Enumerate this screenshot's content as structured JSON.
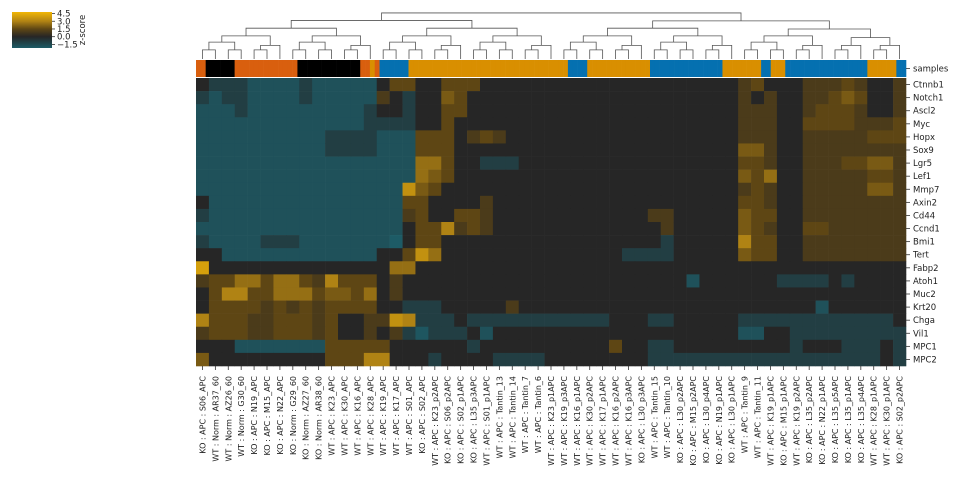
{
  "chart_data": {
    "type": "heatmap",
    "colorbar": {
      "label": "z-score",
      "ticks": [
        4.5,
        3.0,
        1.5,
        0.0,
        -1.5
      ],
      "tick_labels": [
        "4.5",
        "3.0",
        "1.5",
        "0.0",
        "−1.5"
      ],
      "range": [
        -2.2,
        4.8
      ],
      "stops": [
        {
          "v": -2.2,
          "color": "#1d5b66"
        },
        {
          "v": 0.0,
          "color": "#262626"
        },
        {
          "v": 1.5,
          "color": "#5e4614"
        },
        {
          "v": 3.0,
          "color": "#b08314"
        },
        {
          "v": 4.8,
          "color": "#f2b705"
        }
      ]
    },
    "annotation_label": "samples",
    "sample_group_colors": {
      "A": "#d95f0e",
      "B": "#1b9e77",
      "C": "#d98f00",
      "D": "#0570b0"
    },
    "groups_sequence": "AAGGGGGGAAAAAAAAAAAAAGGGGGGGGGGGGGAACADDDDDDCCCCCCCCCCCCCCCCCCCCCCCCCCCCCCCCCDDDDCCCCCCCCCCCCCDDDDDDDDDDDDDDDCCCCCCCCDDCCCDDDDDDDDDDDDDDDDDCCCCCCDD",
    "columns": [
      "KO : APC : S06_APC",
      "WT : Norm : AR37_60",
      "WT : Norm : AZ26_60",
      "WT : Norm : G30_60",
      "KO : APC : N19_APC",
      "KO : APC : M15_APC",
      "KO : APC : N22_APC",
      "KO : Norm : G29_60",
      "KO : Norm : AZ27_60",
      "KO : Norm : AR38_60",
      "WT : APC : K23_APC",
      "WT : APC : K30_APC",
      "WT : APC : K16_APC",
      "WT : APC : K28_APC",
      "WT : APC : K19_APC",
      "WT : APC : K17_APC",
      "WT : APC : S01_APC",
      "KO : APC : S02_APC",
      "WT : APC : K23_p2APC",
      "KO : APC : S06_p2APC",
      "KO : APC : S02_p1APC",
      "KO : APC : L35_p3APC",
      "WT : APC : S01_p1APC",
      "WT : APC : Tantin_13",
      "WT : APC : Tantin_14",
      "WT : APC : Tantin_7",
      "WT : APC : Tantin_6",
      "WT : APC : K23_p1APC",
      "WT : APC : K19_p3APC",
      "WT : APC : K16_p1APC",
      "WT : APC : K30_p2APC",
      "WT : APC : K17_p1APC",
      "WT : APC : K16_p2APC",
      "WT : APC : K16_p3APC",
      "KO : APC : L30_p3APC",
      "WT : APC : Tantin_15",
      "WT : APC : Tantin_10",
      "KO : APC : L30_p2APC",
      "KO : APC : M15_p2APC",
      "KO : APC : L30_p4APC",
      "KO : APC : N19_p1APC",
      "KO : APC : L30_p1APC",
      "WT : APC : Tantin_9",
      "WT : APC : Tantin_11",
      "WT : APC : K19_p1APC",
      "KO : APC : M15_p1APC",
      "WT : APC : K19_p2APC",
      "KO : APC : L35_p2APC",
      "KO : APC : N22_p1APC",
      "KO : APC : L35_p5APC",
      "KO : APC : L35_p1APC",
      "KO : APC : L35_p4APC",
      "WT : APC : K28_p1APC",
      "WT : APC : K30_p1APC",
      "KO : APC : S02_p2APC"
    ],
    "rows": [
      "Ctnnb1",
      "Notch1",
      "Ascl2",
      "Myc",
      "Hopx",
      "Sox9",
      "Lgr5",
      "Lef1",
      "Mmp7",
      "Axin2",
      "Cd44",
      "Ccnd1",
      "Bmi1",
      "Tert",
      "Fabp2",
      "Atoh1",
      "Muc2",
      "Krt20",
      "Chga",
      "Vil1",
      "MPC1",
      "MPC2"
    ],
    "values": [
      [
        0.0,
        -1.0,
        -1.0,
        -1.0,
        -1.8,
        -1.8,
        -1.8,
        -1.8,
        -1.0,
        -1.8,
        -1.8,
        -1.8,
        -1.8,
        -1.8,
        0.0,
        1.5,
        1.5,
        0.0,
        0.0,
        1.5,
        1.5,
        1.5,
        0.0,
        0.0,
        0.0,
        0.0,
        0.0,
        0.0,
        0.0,
        0.0,
        0.0,
        0.0,
        0.0,
        0.0,
        0.0,
        0.0,
        0.0,
        0.0,
        0.0,
        0.0,
        0.0,
        0.0,
        1.0,
        1.5,
        0.0,
        0.0,
        0.0,
        1.0,
        1.0,
        1.0,
        1.5,
        1.0,
        0.0,
        0.0,
        1.0
      ],
      [
        -1.0,
        -1.8,
        -1.0,
        -1.0,
        -1.8,
        -1.8,
        -1.8,
        -1.8,
        -1.0,
        -1.8,
        -1.8,
        -1.8,
        -1.8,
        -1.8,
        1.0,
        0.0,
        -1.0,
        0.0,
        0.0,
        2.0,
        1.5,
        0.0,
        0.0,
        0.0,
        0.0,
        0.0,
        0.0,
        0.0,
        0.0,
        0.0,
        0.0,
        0.0,
        0.0,
        0.0,
        0.0,
        0.0,
        0.0,
        0.0,
        0.0,
        0.0,
        0.0,
        0.0,
        1.0,
        0.0,
        1.0,
        0.0,
        0.0,
        1.0,
        1.0,
        1.5,
        2.0,
        1.5,
        0.0,
        0.0,
        1.0
      ],
      [
        -1.8,
        -1.8,
        -1.8,
        -1.0,
        -1.8,
        -1.8,
        -1.8,
        -1.8,
        -1.8,
        -1.8,
        -1.8,
        -1.8,
        -1.8,
        -1.0,
        0.0,
        0.0,
        -1.0,
        0.0,
        0.0,
        1.5,
        1.5,
        0.0,
        0.0,
        0.0,
        0.0,
        0.0,
        0.0,
        0.0,
        0.0,
        0.0,
        0.0,
        0.0,
        0.0,
        0.0,
        0.0,
        0.0,
        0.0,
        0.0,
        0.0,
        0.0,
        0.0,
        0.0,
        1.0,
        1.0,
        1.0,
        0.0,
        0.0,
        1.0,
        1.5,
        1.5,
        1.5,
        1.0,
        0.0,
        0.0,
        1.0
      ],
      [
        -1.8,
        -1.8,
        -1.8,
        -1.8,
        -1.8,
        -1.8,
        -1.8,
        -1.8,
        -1.8,
        -1.8,
        -1.8,
        -1.8,
        -1.8,
        -1.0,
        -1.0,
        -1.0,
        -1.0,
        0.0,
        0.0,
        1.5,
        0.0,
        0.0,
        0.0,
        0.0,
        0.0,
        0.0,
        0.0,
        0.0,
        0.0,
        0.0,
        0.0,
        0.0,
        0.0,
        0.0,
        0.0,
        0.0,
        0.0,
        0.0,
        0.0,
        0.0,
        0.0,
        0.0,
        1.0,
        1.0,
        1.0,
        0.0,
        0.0,
        1.5,
        1.5,
        1.5,
        1.5,
        1.0,
        1.0,
        1.0,
        1.5
      ],
      [
        -1.8,
        -1.8,
        -1.8,
        -1.8,
        -1.8,
        -1.8,
        -1.8,
        -1.8,
        -1.8,
        -1.8,
        -1.0,
        -1.0,
        -1.0,
        -1.0,
        -1.8,
        -1.8,
        -1.8,
        1.5,
        1.5,
        1.5,
        0.0,
        1.0,
        1.5,
        1.0,
        0.0,
        0.0,
        0.0,
        0.0,
        0.0,
        0.0,
        0.0,
        0.0,
        0.0,
        0.0,
        0.0,
        0.0,
        0.0,
        0.0,
        0.0,
        0.0,
        0.0,
        0.0,
        1.0,
        1.0,
        1.0,
        0.0,
        0.0,
        1.0,
        1.0,
        1.0,
        1.0,
        1.0,
        1.5,
        1.5,
        1.5
      ],
      [
        -1.8,
        -1.8,
        -1.8,
        -1.8,
        -1.8,
        -1.8,
        -1.8,
        -1.8,
        -1.8,
        -1.8,
        -1.0,
        -1.0,
        -1.0,
        -1.0,
        -1.8,
        -1.8,
        -1.8,
        1.5,
        1.5,
        1.5,
        0.0,
        0.0,
        0.0,
        0.0,
        0.0,
        0.0,
        0.0,
        0.0,
        0.0,
        0.0,
        0.0,
        0.0,
        0.0,
        0.0,
        0.0,
        0.0,
        0.0,
        0.0,
        0.0,
        0.0,
        0.0,
        0.0,
        2.0,
        2.0,
        1.0,
        0.0,
        0.0,
        1.0,
        1.0,
        1.0,
        1.0,
        1.0,
        1.0,
        1.0,
        1.0
      ],
      [
        -1.8,
        -1.8,
        -1.8,
        -1.8,
        -1.8,
        -1.8,
        -1.8,
        -1.8,
        -1.8,
        -1.8,
        -1.8,
        -1.8,
        -1.8,
        -1.8,
        -1.8,
        -1.8,
        -1.8,
        2.5,
        2.5,
        1.5,
        0.0,
        0.0,
        -1.0,
        -1.0,
        -1.0,
        0.0,
        0.0,
        0.0,
        0.0,
        0.0,
        0.0,
        0.0,
        0.0,
        0.0,
        0.0,
        0.0,
        0.0,
        0.0,
        0.0,
        0.0,
        0.0,
        0.0,
        1.5,
        1.5,
        1.0,
        0.0,
        0.0,
        1.0,
        1.0,
        1.0,
        1.5,
        1.5,
        2.0,
        2.0,
        1.0
      ],
      [
        -1.8,
        -1.8,
        -1.8,
        -1.8,
        -1.8,
        -1.8,
        -1.8,
        -1.8,
        -1.8,
        -1.8,
        -1.8,
        -1.8,
        -1.8,
        -1.8,
        -1.8,
        -1.8,
        -1.8,
        2.5,
        2.0,
        1.5,
        0.0,
        0.0,
        0.0,
        0.0,
        0.0,
        0.0,
        0.0,
        0.0,
        0.0,
        0.0,
        0.0,
        0.0,
        0.0,
        0.0,
        0.0,
        0.0,
        0.0,
        0.0,
        0.0,
        0.0,
        0.0,
        0.0,
        2.0,
        1.5,
        2.5,
        0.0,
        0.0,
        1.0,
        1.0,
        1.0,
        1.0,
        1.0,
        1.5,
        1.5,
        1.0
      ],
      [
        -1.8,
        -1.8,
        -1.8,
        -1.8,
        -1.8,
        -1.8,
        -1.8,
        -1.8,
        -1.8,
        -1.8,
        -1.8,
        -1.8,
        -1.8,
        -1.8,
        -1.8,
        -1.8,
        3.5,
        2.0,
        1.5,
        0.0,
        0.0,
        0.0,
        0.0,
        0.0,
        0.0,
        0.0,
        0.0,
        0.0,
        0.0,
        0.0,
        0.0,
        0.0,
        0.0,
        0.0,
        0.0,
        0.0,
        0.0,
        0.0,
        0.0,
        0.0,
        0.0,
        0.0,
        1.0,
        1.5,
        1.0,
        0.0,
        0.0,
        1.0,
        1.0,
        1.0,
        1.0,
        1.0,
        2.0,
        2.0,
        1.0
      ],
      [
        0.0,
        -1.8,
        -1.8,
        -1.8,
        -1.8,
        -1.8,
        -1.8,
        -1.8,
        -1.8,
        -1.8,
        -1.8,
        -1.8,
        -1.8,
        -1.8,
        -1.8,
        -1.8,
        1.5,
        1.5,
        0.0,
        0.0,
        0.0,
        0.0,
        1.0,
        0.0,
        0.0,
        0.0,
        0.0,
        0.0,
        0.0,
        0.0,
        0.0,
        0.0,
        0.0,
        0.0,
        0.0,
        0.0,
        0.0,
        0.0,
        0.0,
        0.0,
        0.0,
        0.0,
        1.5,
        1.5,
        1.0,
        0.0,
        0.0,
        1.0,
        1.0,
        1.0,
        1.0,
        1.0,
        1.0,
        1.0,
        1.0
      ],
      [
        -1.0,
        -1.8,
        -1.8,
        -1.8,
        -1.8,
        -1.8,
        -1.8,
        -1.8,
        -1.8,
        -1.8,
        -1.8,
        -1.8,
        -1.8,
        -1.8,
        -1.8,
        -1.8,
        1.0,
        1.5,
        0.0,
        0.0,
        1.5,
        1.5,
        1.0,
        0.0,
        0.0,
        0.0,
        0.0,
        0.0,
        0.0,
        0.0,
        0.0,
        0.0,
        0.0,
        0.0,
        0.0,
        1.0,
        1.0,
        0.0,
        0.0,
        0.0,
        0.0,
        0.0,
        2.0,
        1.5,
        1.5,
        0.0,
        0.0,
        1.0,
        1.0,
        1.0,
        1.0,
        1.0,
        1.0,
        1.0,
        1.0
      ],
      [
        -1.8,
        -1.8,
        -1.8,
        -1.8,
        -1.8,
        -1.8,
        -1.8,
        -1.8,
        -1.8,
        -1.8,
        -1.8,
        -1.8,
        -1.8,
        -1.8,
        -1.8,
        -1.8,
        0.0,
        1.5,
        1.5,
        3.0,
        1.0,
        1.5,
        1.0,
        0.0,
        0.0,
        0.0,
        0.0,
        0.0,
        0.0,
        0.0,
        0.0,
        0.0,
        0.0,
        0.0,
        0.0,
        0.0,
        1.0,
        0.0,
        0.0,
        0.0,
        0.0,
        0.0,
        2.0,
        1.5,
        1.0,
        0.0,
        0.0,
        1.5,
        1.5,
        1.0,
        1.0,
        1.0,
        1.0,
        1.0,
        1.0
      ],
      [
        -1.0,
        -1.8,
        -1.8,
        -1.8,
        -1.8,
        -1.0,
        -1.0,
        -1.0,
        -1.8,
        -1.8,
        -1.8,
        -1.8,
        -1.8,
        -1.8,
        -1.8,
        -2.2,
        0.0,
        1.5,
        1.5,
        0.0,
        0.0,
        0.0,
        0.0,
        0.0,
        0.0,
        0.0,
        0.0,
        0.0,
        0.0,
        0.0,
        0.0,
        0.0,
        0.0,
        0.0,
        0.0,
        0.0,
        -1.0,
        0.0,
        0.0,
        0.0,
        0.0,
        0.0,
        3.0,
        1.5,
        1.5,
        0.0,
        0.0,
        1.0,
        1.0,
        1.0,
        1.0,
        1.0,
        1.0,
        1.0,
        1.0
      ],
      [
        0.0,
        0.0,
        -1.8,
        -1.8,
        -1.8,
        -1.8,
        -1.8,
        -1.8,
        -1.8,
        -1.8,
        -1.8,
        -1.8,
        -1.8,
        -1.8,
        0.0,
        0.0,
        1.5,
        3.5,
        2.5,
        0.0,
        0.0,
        0.0,
        0.0,
        0.0,
        0.0,
        0.0,
        0.0,
        0.0,
        0.0,
        0.0,
        0.0,
        0.0,
        0.0,
        -1.0,
        -1.0,
        -1.0,
        -1.0,
        0.0,
        0.0,
        0.0,
        0.0,
        0.0,
        2.0,
        1.5,
        1.5,
        0.0,
        0.0,
        1.0,
        1.0,
        1.0,
        1.0,
        1.0,
        1.0,
        1.0,
        1.0
      ],
      [
        4.0,
        0.0,
        0.0,
        0.0,
        0.0,
        0.0,
        0.0,
        0.0,
        0.0,
        0.0,
        0.0,
        0.0,
        0.0,
        0.0,
        0.0,
        2.5,
        2.5,
        0.0,
        0.0,
        0.0,
        0.0,
        0.0,
        0.0,
        0.0,
        0.0,
        0.0,
        0.0,
        0.0,
        0.0,
        0.0,
        0.0,
        0.0,
        0.0,
        0.0,
        0.0,
        0.0,
        0.0,
        0.0,
        0.0,
        0.0,
        0.0,
        0.0,
        0.0,
        0.0,
        0.0,
        0.0,
        0.0,
        0.0,
        0.0,
        0.0,
        0.0,
        0.0,
        0.0,
        0.0,
        0.0
      ],
      [
        1.0,
        1.5,
        1.5,
        2.5,
        2.5,
        1.5,
        2.5,
        2.5,
        1.5,
        1.0,
        3.0,
        1.5,
        1.5,
        1.5,
        0.0,
        1.0,
        0.0,
        0.0,
        0.0,
        0.0,
        0.0,
        0.0,
        0.0,
        0.0,
        0.0,
        0.0,
        0.0,
        0.0,
        0.0,
        0.0,
        0.0,
        0.0,
        0.0,
        0.0,
        0.0,
        0.0,
        0.0,
        0.0,
        -1.8,
        0.0,
        0.0,
        0.0,
        0.0,
        0.0,
        0.0,
        -1.0,
        -1.0,
        -1.0,
        -1.0,
        0.0,
        -1.0,
        0.0,
        0.0,
        0.0,
        0.0
      ],
      [
        0.0,
        1.5,
        3.0,
        3.0,
        1.5,
        1.5,
        2.5,
        2.5,
        2.5,
        1.5,
        2.0,
        2.0,
        1.5,
        2.5,
        0.0,
        1.0,
        0.0,
        0.0,
        0.0,
        0.0,
        0.0,
        0.0,
        0.0,
        0.0,
        0.0,
        0.0,
        0.0,
        0.0,
        0.0,
        0.0,
        0.0,
        0.0,
        0.0,
        0.0,
        0.0,
        0.0,
        0.0,
        0.0,
        0.0,
        0.0,
        0.0,
        0.0,
        0.0,
        0.0,
        0.0,
        0.0,
        0.0,
        0.0,
        0.0,
        0.0,
        0.0,
        0.0,
        0.0,
        0.0,
        0.0
      ],
      [
        0.0,
        1.5,
        1.5,
        1.5,
        1.5,
        1.0,
        1.5,
        1.0,
        1.5,
        1.0,
        1.5,
        1.5,
        1.5,
        1.5,
        0.0,
        0.0,
        -1.0,
        -1.0,
        -1.0,
        0.0,
        0.0,
        0.0,
        0.0,
        0.0,
        1.0,
        0.0,
        0.0,
        0.0,
        0.0,
        0.0,
        0.0,
        0.0,
        0.0,
        0.0,
        0.0,
        0.0,
        0.0,
        0.0,
        0.0,
        0.0,
        0.0,
        0.0,
        0.0,
        0.0,
        0.0,
        0.0,
        0.0,
        0.0,
        -1.8,
        0.0,
        0.0,
        0.0,
        0.0,
        0.0,
        0.0
      ],
      [
        3.0,
        1.5,
        1.5,
        1.5,
        1.0,
        1.0,
        1.5,
        1.5,
        1.5,
        1.0,
        1.5,
        0.0,
        0.0,
        1.0,
        1.0,
        3.5,
        3.0,
        -1.0,
        -1.0,
        -1.0,
        0.0,
        -1.0,
        -1.0,
        -1.0,
        -1.0,
        -1.0,
        -1.0,
        -1.0,
        -1.0,
        -1.0,
        -1.0,
        -1.0,
        0.0,
        0.0,
        0.0,
        -1.0,
        -1.0,
        0.0,
        0.0,
        0.0,
        0.0,
        0.0,
        -1.0,
        -1.0,
        -1.0,
        -1.0,
        -1.0,
        -1.0,
        -1.0,
        -1.0,
        -1.0,
        -1.0,
        -1.0,
        -1.0,
        0.0
      ],
      [
        1.0,
        1.5,
        1.5,
        1.5,
        1.0,
        1.0,
        1.5,
        1.5,
        1.5,
        1.0,
        1.5,
        0.0,
        0.0,
        1.0,
        0.0,
        1.0,
        -1.0,
        -2.0,
        -1.0,
        -1.0,
        -1.0,
        0.0,
        -1.8,
        0.0,
        0.0,
        0.0,
        0.0,
        0.0,
        0.0,
        0.0,
        0.0,
        0.0,
        0.0,
        0.0,
        0.0,
        0.0,
        0.0,
        0.0,
        0.0,
        0.0,
        0.0,
        0.0,
        -1.8,
        -1.8,
        0.0,
        0.0,
        -1.0,
        -1.0,
        -1.0,
        -1.0,
        -1.0,
        -1.0,
        -1.0,
        -1.0,
        -1.0
      ],
      [
        0.0,
        0.0,
        0.0,
        -1.8,
        -1.8,
        -1.8,
        -1.8,
        -1.8,
        -1.8,
        -1.8,
        1.5,
        1.5,
        1.5,
        1.5,
        1.5,
        0.0,
        0.0,
        0.0,
        0.0,
        0.0,
        0.0,
        -1.0,
        0.0,
        0.0,
        0.0,
        0.0,
        0.0,
        0.0,
        0.0,
        0.0,
        0.0,
        0.0,
        1.5,
        0.0,
        0.0,
        -1.0,
        -1.0,
        0.0,
        0.0,
        0.0,
        0.0,
        0.0,
        0.0,
        0.0,
        0.0,
        0.0,
        -1.0,
        0.0,
        0.0,
        0.0,
        -1.0,
        -1.0,
        -1.0,
        0.0,
        -1.0
      ],
      [
        2.0,
        0.0,
        0.0,
        0.0,
        0.0,
        0.0,
        0.0,
        0.0,
        0.0,
        0.0,
        1.5,
        1.5,
        1.5,
        3.0,
        3.0,
        0.0,
        0.0,
        0.0,
        -1.0,
        0.0,
        0.0,
        0.0,
        0.0,
        -1.0,
        -1.0,
        -1.0,
        -1.0,
        0.0,
        0.0,
        0.0,
        0.0,
        0.0,
        0.0,
        0.0,
        0.0,
        -1.0,
        -1.0,
        -1.0,
        -1.0,
        -1.0,
        -1.0,
        -1.0,
        -1.0,
        -1.0,
        -1.0,
        -1.0,
        -1.0,
        -1.0,
        -1.0,
        -1.0,
        -1.0,
        -1.0,
        -1.0,
        0.0,
        -1.0
      ]
    ]
  }
}
